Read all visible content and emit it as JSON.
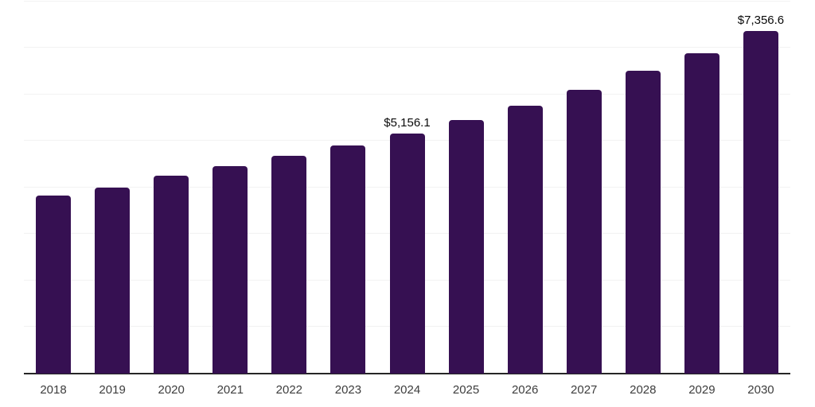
{
  "chart_data": {
    "type": "bar",
    "categories": [
      "2018",
      "2019",
      "2020",
      "2021",
      "2022",
      "2023",
      "2024",
      "2025",
      "2026",
      "2027",
      "2028",
      "2029",
      "2030"
    ],
    "values": [
      3825,
      4000,
      4250,
      4460,
      4675,
      4905,
      5156.1,
      5445,
      5755,
      6105,
      6510,
      6890,
      7356.6
    ],
    "data_labels": [
      "",
      "",
      "",
      "",
      "",
      "",
      "$5,156.1",
      "",
      "",
      "",
      "",
      "",
      "$7,356.6"
    ],
    "title": "",
    "xlabel": "",
    "ylabel": "",
    "ylim": [
      0,
      8030
    ],
    "gridline_step": 1000,
    "grid": true,
    "legend": false,
    "colors": {
      "bar": "#361052",
      "axis": "#262626",
      "gridline": "#f2f2f2",
      "value_label": "#0a0a0a",
      "tick_label": "#3d3d3d",
      "background": "#ffffff"
    }
  }
}
